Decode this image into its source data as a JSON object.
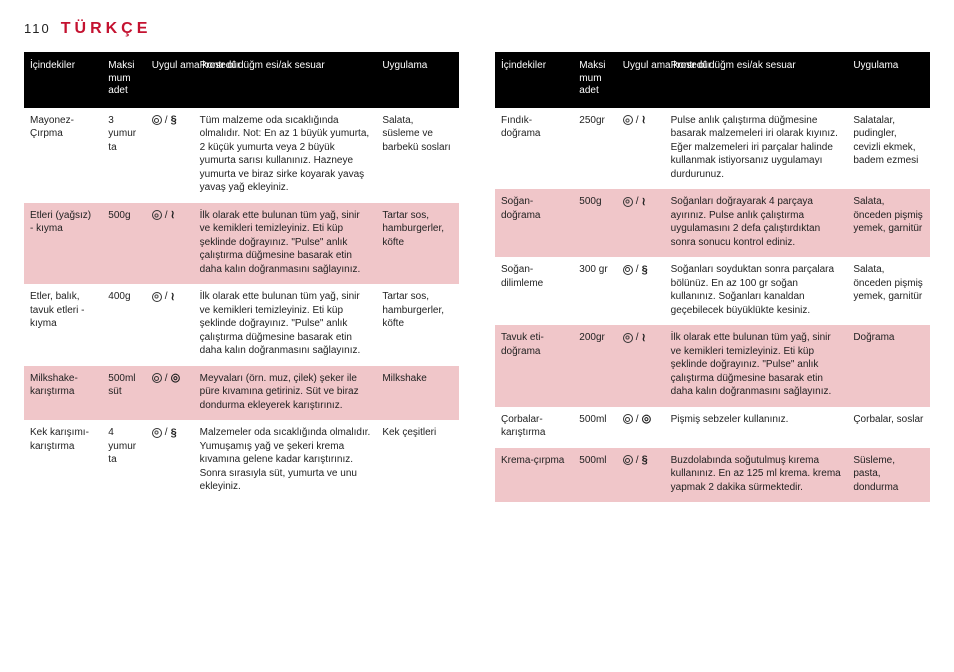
{
  "page_number": "110",
  "language_title": "TÜRKÇE",
  "title_color": "#c41230",
  "header_bg": "#000000",
  "row_alt_bg": "#f0c6c9",
  "columns": [
    "İçindekiler",
    "Maksi mum adet",
    "Uygul ama kontr ol düğm esi/ak sesuar",
    "Prosedür",
    "Uygulama"
  ],
  "left_rows": [
    {
      "ing": "Mayonez- Çırpma",
      "qty": "3 yumur ta",
      "iconA": "b",
      "iconSep": "/",
      "iconB": "glyph-s",
      "proc": "Tüm malzeme oda sıcaklığında olmalıdır. Not: En az 1 büyük yumurta, 2 küçük yumurta veya 2 büyük yumurta sarısı kullanınız. Hazneye yumurta ve biraz sirke koyarak yavaş yavaş yağ ekleyiniz.",
      "app": "Salata, süsleme ve barbekü sosları"
    },
    {
      "ing": "Etleri (yağsız) - kıyma",
      "qty": "500g",
      "iconA": "c",
      "iconSep": "/",
      "iconB": "glyph-z",
      "proc": "İlk olarak ette bulunan tüm yağ, sinir ve kemikleri temizleyiniz. Eti küp şeklinde doğrayınız. \"Pulse\" anlık çalıştırma düğmesine basarak etin daha kalın doğranmasını sağlayınız.",
      "app": "Tartar sos, hamburgerler, köfte"
    },
    {
      "ing": "Etler, balık, tavuk etleri - kıyma",
      "qty": "400g",
      "iconA": "c",
      "iconSep": "/",
      "iconB": "glyph-z",
      "proc": "İlk olarak ette bulunan tüm yağ, sinir ve kemikleri temizleyiniz. Eti küp şeklinde doğrayınız. \"Pulse\" anlık çalıştırma düğmesine basarak etin daha kalın doğranmasını sağlayınız.",
      "app": "Tartar sos, hamburgerler, köfte"
    },
    {
      "ing": "Milkshake- karıştırma",
      "qty": "500ml süt",
      "iconA": "b",
      "iconSep": "/",
      "iconB": "glyph-o",
      "proc": "Meyvaları (örn. muz, çilek) şeker ile püre kıvamına getiriniz. Süt ve biraz dondurma ekleyerek karıştırınız.",
      "app": "Milkshake"
    },
    {
      "ing": "Kek karışımı- karıştırma",
      "qty": "4 yumur ta",
      "iconA": "c",
      "iconSep": "/",
      "iconB": "glyph-s",
      "proc": "Malzemeler oda sıcaklığında olmalıdır. Yumuşamış yağ ve şekeri krema kıvamına gelene kadar karıştırınız. Sonra sırasıyla süt, yumurta ve unu ekleyiniz.",
      "app": "Kek çeşitleri"
    }
  ],
  "right_rows": [
    {
      "ing": "Fındık- doğrama",
      "qty": "250gr",
      "iconA": "c",
      "iconSep": "/",
      "iconB": "glyph-z",
      "proc": "Pulse anlık çalıştırma düğmesine basarak malzemeleri iri olarak kıyınız. Eğer malzemeleri iri parçalar halinde kullanmak istiyorsanız uygulamayı durdurunuz.",
      "app": "Salatalar, pudingler, cevizli ekmek, badem ezmesi"
    },
    {
      "ing": "Soğan- doğrama",
      "qty": "500g",
      "iconA": "c",
      "iconSep": "/",
      "iconB": "glyph-z",
      "proc": "Soğanları doğrayarak 4 parçaya ayırınız. Pulse anlık çalıştırma uygulamasını 2 defa çalıştırdıktan sonra sonucu kontrol ediniz.",
      "app": "Salata, önceden pişmiş yemek, garnitür"
    },
    {
      "ing": "Soğan- dilimleme",
      "qty": "300 gr",
      "iconA": "b",
      "iconSep": "/",
      "iconB": "glyph-s",
      "proc": "Soğanları soyduktan sonra parçalara bölünüz. En az 100 gr soğan kullanınız. Soğanları kanaldan geçebilecek büyüklükte kesiniz.",
      "app": "Salata, önceden pişmiş yemek, garnitür"
    },
    {
      "ing": "Tavuk eti- doğrama",
      "qty": "200gr",
      "iconA": "c",
      "iconSep": "/",
      "iconB": "glyph-z",
      "proc": "İlk olarak ette bulunan tüm yağ, sinir ve kemikleri temizleyiniz. Eti küp şeklinde doğrayınız. \"Pulse\" anlık çalıştırma düğmesine basarak etin daha kalın doğranmasını sağlayınız.",
      "app": "Doğrama"
    },
    {
      "ing": "Çorbalar- karıştırma",
      "qty": "500ml",
      "iconA": "b",
      "iconSep": "/",
      "iconB": "glyph-o",
      "proc": "Pişmiş sebzeler kullanınız.",
      "app": "Çorbalar, soslar"
    },
    {
      "ing": "Krema-çırpma",
      "qty": "500ml",
      "iconA": "b",
      "iconSep": "/",
      "iconB": "glyph-s",
      "proc": "Buzdolabında soğutulmuş kırema kullanınız. En az 125 ml krema. krema yapmak 2 dakika sürmektedir.",
      "app": "Süsleme, pasta, dondurma"
    }
  ]
}
